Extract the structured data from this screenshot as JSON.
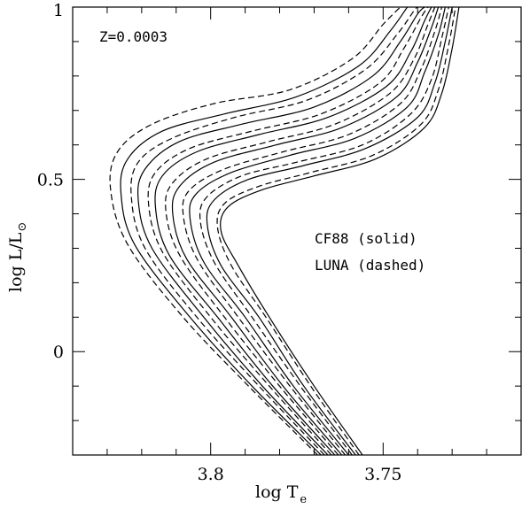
{
  "chart_data": {
    "type": "line",
    "title": "",
    "xlabel": "log T",
    "xlabel_sub": "e",
    "ylabel": "log L/L",
    "ylabel_sub": "⊙",
    "xlim": [
      3.84,
      3.71
    ],
    "x_reversed": true,
    "ylim": [
      -0.3,
      1.0
    ],
    "x_ticks": [
      3.8,
      3.75
    ],
    "x_tick_labels": [
      "3.8",
      "3.75"
    ],
    "y_ticks": [
      0,
      0.5,
      1
    ],
    "y_tick_labels": [
      "0",
      "0.5",
      "1"
    ],
    "grid": false,
    "legend": "none",
    "annotations": [
      "Z=0.0003",
      "CF88 (solid)",
      "LUNA (dashed)"
    ],
    "line_styles": {
      "CF88": "solid",
      "LUNA": "dashed"
    },
    "series": [
      {
        "style": "solid",
        "points": [
          [
            3.756,
            -0.3
          ],
          [
            3.77,
            -0.1
          ],
          [
            3.783,
            0.1
          ],
          [
            3.792,
            0.25
          ],
          [
            3.797,
            0.35
          ],
          [
            3.795,
            0.42
          ],
          [
            3.785,
            0.47
          ],
          [
            3.77,
            0.51
          ],
          [
            3.752,
            0.56
          ],
          [
            3.738,
            0.65
          ],
          [
            3.733,
            0.75
          ],
          [
            3.73,
            0.88
          ],
          [
            3.728,
            1.0
          ]
        ]
      },
      {
        "style": "dashed",
        "points": [
          [
            3.757,
            -0.3
          ],
          [
            3.771,
            -0.1
          ],
          [
            3.784,
            0.1
          ],
          [
            3.794,
            0.25
          ],
          [
            3.798,
            0.36
          ],
          [
            3.796,
            0.43
          ],
          [
            3.786,
            0.48
          ],
          [
            3.771,
            0.52
          ],
          [
            3.753,
            0.57
          ],
          [
            3.739,
            0.66
          ],
          [
            3.734,
            0.76
          ],
          [
            3.731,
            0.89
          ],
          [
            3.729,
            1.0
          ]
        ]
      },
      {
        "style": "solid",
        "points": [
          [
            3.758,
            -0.3
          ],
          [
            3.773,
            -0.1
          ],
          [
            3.786,
            0.1
          ],
          [
            3.797,
            0.25
          ],
          [
            3.801,
            0.37
          ],
          [
            3.799,
            0.44
          ],
          [
            3.789,
            0.5
          ],
          [
            3.773,
            0.54
          ],
          [
            3.755,
            0.59
          ],
          [
            3.74,
            0.68
          ],
          [
            3.735,
            0.78
          ],
          [
            3.732,
            0.9
          ],
          [
            3.73,
            1.0
          ]
        ]
      },
      {
        "style": "dashed",
        "points": [
          [
            3.759,
            -0.3
          ],
          [
            3.774,
            -0.1
          ],
          [
            3.788,
            0.1
          ],
          [
            3.799,
            0.26
          ],
          [
            3.803,
            0.38
          ],
          [
            3.801,
            0.45
          ],
          [
            3.791,
            0.51
          ],
          [
            3.775,
            0.55
          ],
          [
            3.756,
            0.6
          ],
          [
            3.742,
            0.69
          ],
          [
            3.736,
            0.79
          ],
          [
            3.733,
            0.91
          ],
          [
            3.731,
            1.0
          ]
        ]
      },
      {
        "style": "solid",
        "points": [
          [
            3.76,
            -0.3
          ],
          [
            3.776,
            -0.1
          ],
          [
            3.79,
            0.1
          ],
          [
            3.802,
            0.26
          ],
          [
            3.806,
            0.39
          ],
          [
            3.804,
            0.46
          ],
          [
            3.794,
            0.52
          ],
          [
            3.777,
            0.57
          ],
          [
            3.758,
            0.62
          ],
          [
            3.743,
            0.71
          ],
          [
            3.738,
            0.81
          ],
          [
            3.734,
            0.92
          ],
          [
            3.732,
            1.0
          ]
        ]
      },
      {
        "style": "dashed",
        "points": [
          [
            3.761,
            -0.3
          ],
          [
            3.777,
            -0.1
          ],
          [
            3.792,
            0.1
          ],
          [
            3.804,
            0.27
          ],
          [
            3.808,
            0.4
          ],
          [
            3.806,
            0.47
          ],
          [
            3.796,
            0.53
          ],
          [
            3.779,
            0.58
          ],
          [
            3.76,
            0.63
          ],
          [
            3.745,
            0.72
          ],
          [
            3.739,
            0.82
          ],
          [
            3.735,
            0.93
          ],
          [
            3.733,
            1.0
          ]
        ]
      },
      {
        "style": "solid",
        "points": [
          [
            3.762,
            -0.3
          ],
          [
            3.779,
            -0.1
          ],
          [
            3.794,
            0.1
          ],
          [
            3.807,
            0.27
          ],
          [
            3.811,
            0.4
          ],
          [
            3.809,
            0.48
          ],
          [
            3.799,
            0.55
          ],
          [
            3.781,
            0.6
          ],
          [
            3.762,
            0.65
          ],
          [
            3.746,
            0.74
          ],
          [
            3.74,
            0.84
          ],
          [
            3.736,
            0.94
          ],
          [
            3.734,
            1.0
          ]
        ]
      },
      {
        "style": "dashed",
        "points": [
          [
            3.763,
            -0.3
          ],
          [
            3.78,
            -0.1
          ],
          [
            3.796,
            0.1
          ],
          [
            3.809,
            0.28
          ],
          [
            3.813,
            0.41
          ],
          [
            3.811,
            0.49
          ],
          [
            3.801,
            0.56
          ],
          [
            3.783,
            0.61
          ],
          [
            3.764,
            0.66
          ],
          [
            3.748,
            0.75
          ],
          [
            3.741,
            0.85
          ],
          [
            3.737,
            0.95
          ],
          [
            3.735,
            1.0
          ]
        ]
      },
      {
        "style": "solid",
        "points": [
          [
            3.764,
            -0.3
          ],
          [
            3.782,
            -0.1
          ],
          [
            3.798,
            0.1
          ],
          [
            3.812,
            0.28
          ],
          [
            3.816,
            0.42
          ],
          [
            3.814,
            0.51
          ],
          [
            3.804,
            0.58
          ],
          [
            3.786,
            0.63
          ],
          [
            3.766,
            0.68
          ],
          [
            3.749,
            0.77
          ],
          [
            3.742,
            0.87
          ],
          [
            3.738,
            0.96
          ],
          [
            3.736,
            1.0
          ]
        ]
      },
      {
        "style": "dashed",
        "points": [
          [
            3.765,
            -0.3
          ],
          [
            3.783,
            -0.1
          ],
          [
            3.8,
            0.1
          ],
          [
            3.814,
            0.29
          ],
          [
            3.818,
            0.43
          ],
          [
            3.816,
            0.52
          ],
          [
            3.806,
            0.59
          ],
          [
            3.788,
            0.64
          ],
          [
            3.768,
            0.69
          ],
          [
            3.751,
            0.78
          ],
          [
            3.744,
            0.88
          ],
          [
            3.739,
            0.97
          ],
          [
            3.737,
            1.0
          ]
        ]
      },
      {
        "style": "solid",
        "points": [
          [
            3.766,
            -0.3
          ],
          [
            3.785,
            -0.1
          ],
          [
            3.802,
            0.1
          ],
          [
            3.817,
            0.3
          ],
          [
            3.821,
            0.44
          ],
          [
            3.819,
            0.53
          ],
          [
            3.809,
            0.61
          ],
          [
            3.791,
            0.66
          ],
          [
            3.77,
            0.71
          ],
          [
            3.753,
            0.8
          ],
          [
            3.745,
            0.9
          ],
          [
            3.74,
            0.98
          ],
          [
            3.738,
            1.0
          ]
        ]
      },
      {
        "style": "dashed",
        "points": [
          [
            3.767,
            -0.3
          ],
          [
            3.786,
            -0.1
          ],
          [
            3.804,
            0.1
          ],
          [
            3.819,
            0.3
          ],
          [
            3.823,
            0.45
          ],
          [
            3.821,
            0.55
          ],
          [
            3.811,
            0.62
          ],
          [
            3.793,
            0.68
          ],
          [
            3.772,
            0.73
          ],
          [
            3.755,
            0.82
          ],
          [
            3.746,
            0.92
          ],
          [
            3.741,
            0.99
          ],
          [
            3.74,
            1.0
          ]
        ]
      },
      {
        "style": "solid",
        "points": [
          [
            3.768,
            -0.3
          ],
          [
            3.788,
            -0.1
          ],
          [
            3.806,
            0.1
          ],
          [
            3.822,
            0.31
          ],
          [
            3.826,
            0.46
          ],
          [
            3.824,
            0.56
          ],
          [
            3.814,
            0.64
          ],
          [
            3.796,
            0.69
          ],
          [
            3.775,
            0.74
          ],
          [
            3.757,
            0.83
          ],
          [
            3.748,
            0.93
          ],
          [
            3.743,
            1.0
          ]
        ]
      },
      {
        "style": "dashed",
        "points": [
          [
            3.769,
            -0.3
          ],
          [
            3.789,
            -0.1
          ],
          [
            3.808,
            0.1
          ],
          [
            3.824,
            0.31
          ],
          [
            3.829,
            0.47
          ],
          [
            3.827,
            0.58
          ],
          [
            3.817,
            0.66
          ],
          [
            3.799,
            0.72
          ],
          [
            3.777,
            0.76
          ],
          [
            3.759,
            0.85
          ],
          [
            3.75,
            0.95
          ],
          [
            3.745,
            1.0
          ]
        ]
      }
    ]
  }
}
